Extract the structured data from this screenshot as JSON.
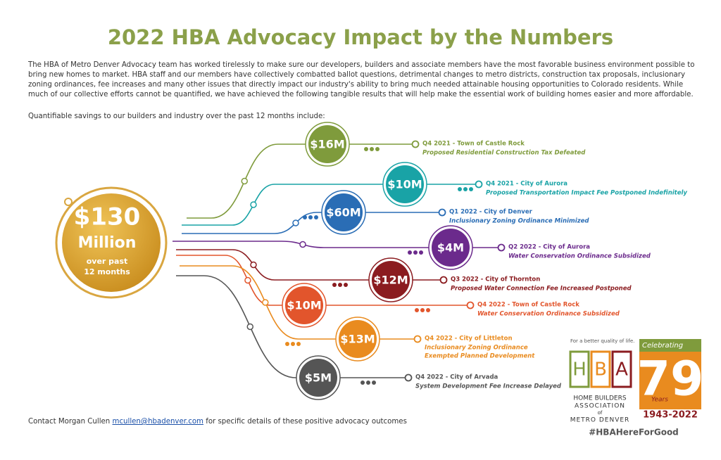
{
  "header": {
    "title": "2022 HBA Advocacy Impact by the Numbers",
    "intro": "The HBA of Metro Denver Advocacy team has worked tirelessly to make sure our developers, builders and associate members have the most favorable business environment possible to bring new homes to market. HBA staff and our members have collectively combatted ballot questions, detrimental changes to metro districts, construction tax proposals, inclusionary zoning ordinances, fee increases and many other issues that directly impact our industry's ability to bring much needed attainable housing opportunities to Colorado residents. While much of our collective efforts cannot be quantified, we have achieved the following tangible results that will help make the essential work of building homes easier and more affordable.",
    "lead": "Quantifiable savings to our builders and industry over the past 12 months include:"
  },
  "total": {
    "amount": "$130",
    "unit": "Million",
    "note_1": "over past",
    "note_2": "12 months"
  },
  "items": [
    {
      "amount": "$16M",
      "heading": "Q4 2021 - Town of Castle Rock",
      "detail": [
        "Proposed Residential Construction Tax Defeated"
      ],
      "color": "#7f9b3c"
    },
    {
      "amount": "$10M",
      "heading": "Q4 2021 - City of Aurora",
      "detail": [
        "Proposed Transportation Impact Fee Postponed Indefinitely"
      ],
      "color": "#19a3a6"
    },
    {
      "amount": "$60M",
      "heading": "Q1 2022 - City of Denver",
      "detail": [
        "Inclusionary Zoning Ordinance Minimized"
      ],
      "color": "#2a6db5"
    },
    {
      "amount": "$4M",
      "heading": "Q2 2022 - City of Aurora",
      "detail": [
        "Water Conservation Ordinance Subsidized"
      ],
      "color": "#6b2a8c"
    },
    {
      "amount": "$12M",
      "heading": "Q3 2022 - City of Thornton",
      "detail": [
        "Proposed Water Connection Fee Increased Postponed"
      ],
      "color": "#8b1c20"
    },
    {
      "amount": "$10M",
      "heading": "Q4 2022 - Town of Castle Rock",
      "detail": [
        "Water Conservation Ordinance Subsidized"
      ],
      "color": "#e2552c"
    },
    {
      "amount": "$13M",
      "heading": "Q4 2022 - City of Littleton",
      "detail": [
        "Inclusionary Zoning Ordinance",
        "Exempted Planned Development"
      ],
      "color": "#e98b1f"
    },
    {
      "amount": "$5M",
      "heading": "Q4 2022 - City of Arvada",
      "detail": [
        "System Development Fee Increase Delayed"
      ],
      "color": "#555555"
    }
  ],
  "contact": {
    "prefix": "Contact Morgan Cullen",
    "email": "mcullen@hbadenver.com",
    "suffix": "for specific details of these positive advocacy outcomes"
  },
  "logo": {
    "tagline": "For a better quality of life.",
    "letters": [
      "H",
      "B",
      "A"
    ],
    "name_1": "HOME BUILDERS",
    "name_2": "ASSOCIATION",
    "name_3": "of",
    "name_4": "METRO DENVER"
  },
  "anniversary": {
    "celebrating": "Celebrating",
    "number": "79",
    "years": "Years",
    "span": "1943-2022"
  },
  "hashtag": "#HBAHereForGood"
}
